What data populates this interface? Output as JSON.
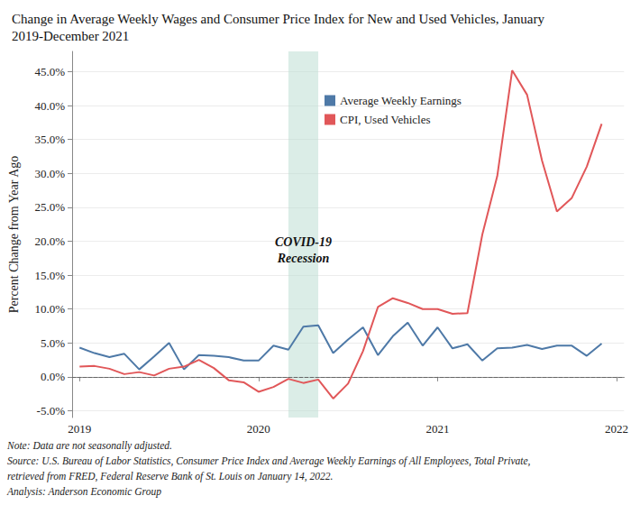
{
  "chart_data": {
    "type": "line",
    "title": "Change in Average Weekly Wages and Consumer Price Index for New and Used Vehicles, January\n2019-December 2021",
    "y_label": "Percent Change from Year Ago",
    "x": [
      "2019",
      null,
      null,
      null,
      null,
      null,
      null,
      null,
      null,
      null,
      null,
      null,
      "2020",
      null,
      null,
      null,
      null,
      null,
      null,
      null,
      null,
      null,
      null,
      null,
      "2021",
      null,
      null,
      null,
      null,
      null,
      null,
      null,
      null,
      null,
      null,
      null,
      "2022"
    ],
    "series": [
      {
        "name": "Average Weekly Earnings",
        "color": "#4e79a7",
        "values": [
          4.3,
          3.5,
          2.9,
          3.4,
          1.1,
          3.0,
          5.0,
          1.1,
          3.2,
          3.1,
          2.9,
          2.4,
          2.4,
          4.6,
          4.0,
          7.4,
          7.6,
          3.5,
          5.5,
          7.3,
          3.2,
          6.0,
          8.0,
          4.6,
          7.3,
          4.2,
          4.8,
          2.4,
          4.2,
          4.3,
          4.7,
          4.1,
          4.6,
          4.6,
          3.1,
          4.9,
          null
        ]
      },
      {
        "name": "CPI, Used Vehicles",
        "color": "#e15759",
        "values": [
          1.5,
          1.6,
          1.2,
          0.4,
          0.7,
          0.2,
          1.2,
          1.5,
          2.5,
          1.3,
          -0.5,
          -0.8,
          -2.2,
          -1.5,
          -0.3,
          -0.9,
          -0.4,
          -3.2,
          -1.0,
          3.8,
          10.3,
          11.6,
          10.9,
          10.0,
          10.0,
          9.3,
          9.4,
          21.0,
          29.6,
          45.2,
          41.6,
          31.9,
          24.4,
          26.4,
          31.0,
          37.3,
          null
        ]
      }
    ],
    "ylim": [
      -6,
      48
    ],
    "yticks": [
      {
        "value": -5,
        "label": "-5.0%"
      },
      {
        "value": 0,
        "label": "0.0%"
      },
      {
        "value": 5,
        "label": "5.0%"
      },
      {
        "value": 10,
        "label": "10.0%"
      },
      {
        "value": 15,
        "label": "15.0%"
      },
      {
        "value": 20,
        "label": "20.0%"
      },
      {
        "value": 25,
        "label": "25.0%"
      },
      {
        "value": 30,
        "label": "30.0%"
      },
      {
        "value": 35,
        "label": "35.0%"
      },
      {
        "value": 40,
        "label": "40.0%"
      },
      {
        "value": 45,
        "label": "45.0%"
      }
    ],
    "grid": true,
    "legend": "top",
    "annotations": [
      {
        "text": [
          "COVID-19",
          "Recession"
        ],
        "x_from_index": 14,
        "x_to_index": 16
      }
    ],
    "reference_lines": [
      {
        "y": 0,
        "line_style": "dashed"
      }
    ],
    "notes": [
      "Note: Data are not seasonally adjusted.",
      "Source: U.S. Bureau of Labor Statistics, Consumer Price Index and Average Weekly Earnings of All Employees, Total Private,",
      "retrieved from FRED, Federal Reserve Bank of St. Louis on January 14, 2022.",
      "Analysis: Anderson Economic Group"
    ]
  }
}
